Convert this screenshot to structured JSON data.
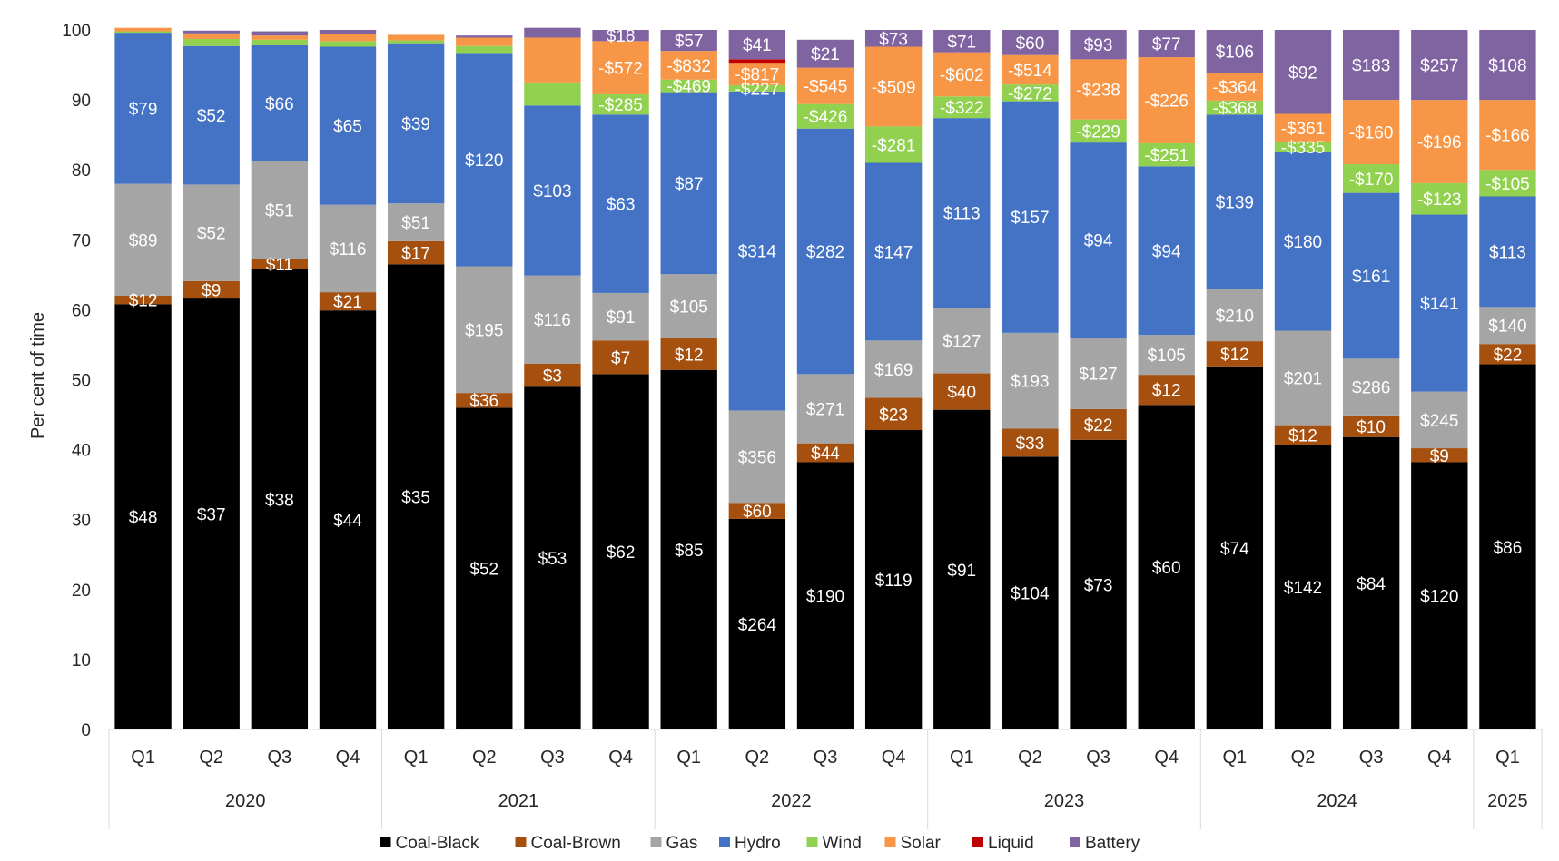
{
  "chart_data": {
    "type": "bar",
    "stacked": true,
    "title": "",
    "xlabel": "",
    "ylabel": "Per cent of time",
    "ylim": [
      0,
      100
    ],
    "yticks": [
      "0",
      "10",
      "20",
      "30",
      "40",
      "50",
      "60",
      "70",
      "80",
      "90",
      "100"
    ],
    "quarters": [
      "Q1",
      "Q2",
      "Q3",
      "Q4",
      "Q1",
      "Q2",
      "Q3",
      "Q4",
      "Q1",
      "Q2",
      "Q3",
      "Q4",
      "Q1",
      "Q2",
      "Q3",
      "Q4",
      "Q1",
      "Q2",
      "Q3",
      "Q4",
      "Q1"
    ],
    "years": [
      {
        "label": "2020",
        "count": 4
      },
      {
        "label": "2021",
        "count": 4
      },
      {
        "label": "2022",
        "count": 4
      },
      {
        "label": "2023",
        "count": 4
      },
      {
        "label": "2024",
        "count": 4
      },
      {
        "label": "2025",
        "count": 1
      }
    ],
    "legend_position": "bottom",
    "series": [
      {
        "name": "Coal-Black",
        "color": "#000000",
        "label_color": "#ffffff",
        "values": [
          60.8,
          61.6,
          65.8,
          59.9,
          66.5,
          46.0,
          49.0,
          50.8,
          51.4,
          30.1,
          38.2,
          42.8,
          45.7,
          39.0,
          41.4,
          46.4,
          51.9,
          40.7,
          41.8,
          38.2,
          52.2
        ],
        "labels": [
          "$48",
          "$37",
          "$38",
          "$44",
          "$35",
          "$52",
          "$53",
          "$62",
          "$85",
          "$264",
          "$190",
          "$119",
          "$91",
          "$104",
          "$73",
          "$60",
          "$74",
          "$142",
          "$84",
          "$120",
          "$86"
        ]
      },
      {
        "name": "Coal-Brown",
        "color": "#a5500f",
        "label_color": "#ffffff",
        "values": [
          1.2,
          2.5,
          1.5,
          2.6,
          3.3,
          2.1,
          3.3,
          4.8,
          4.5,
          2.3,
          2.7,
          4.6,
          5.2,
          4.0,
          4.4,
          4.3,
          3.6,
          2.8,
          3.1,
          2.0,
          2.9
        ],
        "labels": [
          "$12",
          "$9",
          "$11",
          "$21",
          "$17",
          "$36",
          "$3",
          "$7",
          "$12",
          "$60",
          "$44",
          "$23",
          "$40",
          "$33",
          "$22",
          "$12",
          "$12",
          "$12",
          "$10",
          "$9",
          "$22"
        ]
      },
      {
        "name": "Gas",
        "color": "#a5a5a5",
        "label_color": "#ffffff",
        "values": [
          16.0,
          13.8,
          13.9,
          12.5,
          5.4,
          18.1,
          12.6,
          6.8,
          9.2,
          13.2,
          9.9,
          8.2,
          9.4,
          13.7,
          10.2,
          5.7,
          7.4,
          13.5,
          8.1,
          8.1,
          5.3
        ],
        "labels": [
          "$89",
          "$52",
          "$51",
          "$116",
          "$51",
          "$195",
          "$116",
          "$91",
          "$105",
          "$356",
          "$271",
          "$169",
          "$127",
          "$193",
          "$127",
          "$105",
          "$210",
          "$201",
          "$286",
          "$245",
          "$140"
        ]
      },
      {
        "name": "Hydro",
        "color": "#4472c4",
        "label_color": "#ffffff",
        "values": [
          21.6,
          19.8,
          16.6,
          22.6,
          22.9,
          30.5,
          24.3,
          25.5,
          26.0,
          45.6,
          35.1,
          25.4,
          27.1,
          33.1,
          27.9,
          24.1,
          25.0,
          25.6,
          23.7,
          25.3,
          15.8
        ],
        "labels": [
          "$79",
          "$52",
          "$66",
          "$65",
          "$39",
          "$120",
          "$103",
          "$63",
          "$87",
          "$314",
          "$282",
          "$147",
          "$113",
          "$157",
          "$94",
          "$94",
          "$139",
          "$180",
          "$161",
          "$141",
          "$113"
        ]
      },
      {
        "name": "Wind",
        "color": "#92d050",
        "label_color": "#ffffff",
        "values": [
          0.2,
          1.0,
          0.8,
          0.8,
          0.4,
          1.0,
          3.3,
          2.9,
          1.8,
          0.9,
          3.5,
          5.2,
          3.1,
          2.4,
          3.3,
          3.3,
          2.0,
          1.4,
          4.1,
          4.5,
          3.8
        ],
        "labels": [
          "",
          "",
          "",
          "",
          "",
          "",
          "",
          "-$285",
          "-$469",
          "-$227",
          "-$426",
          "-$281",
          "-$322",
          "-$272",
          "-$229",
          "-$251",
          "-$368",
          "-$335",
          "-$170",
          "-$123",
          "-$105"
        ]
      },
      {
        "name": "Solar",
        "color": "#f79646",
        "label_color": "#ffffff",
        "values": [
          0.5,
          0.8,
          0.6,
          1.0,
          0.8,
          1.2,
          6.4,
          7.6,
          4.1,
          3.2,
          5.2,
          11.4,
          6.3,
          4.2,
          8.6,
          12.3,
          4.0,
          4.0,
          9.2,
          11.9,
          10.0
        ],
        "labels": [
          "",
          "",
          "",
          "",
          "",
          "",
          "",
          "-$572",
          "-$832",
          "-$817",
          "-$545",
          "-$509",
          "-$602",
          "-$514",
          "-$238",
          "-$226",
          "-$364",
          "-$361",
          "-$160",
          "-$196",
          "-$166"
        ]
      },
      {
        "name": "Liquid",
        "color": "#c00000",
        "label_color": "#ffffff",
        "values": [
          0,
          0,
          0,
          0,
          0,
          0,
          0,
          0,
          0,
          0.5,
          0,
          0,
          0,
          0,
          0,
          0,
          0,
          0,
          0,
          0,
          0
        ],
        "labels": [
          "",
          "",
          "",
          "",
          "",
          "",
          "",
          "",
          "",
          "",
          "",
          "",
          "",
          "",
          "",
          "",
          "",
          "",
          "",
          "",
          ""
        ]
      },
      {
        "name": "Battery",
        "color": "#8064a2",
        "label_color": "#ffffff",
        "values": [
          0,
          0.4,
          0.6,
          0.6,
          0,
          0.3,
          1.4,
          1.6,
          3.0,
          4.2,
          4.0,
          2.4,
          3.2,
          3.6,
          4.2,
          3.9,
          6.1,
          12.0,
          10.0,
          10.0,
          10.0
        ],
        "labels": [
          "",
          "",
          "",
          "",
          "",
          "",
          "",
          "$18",
          "$57",
          "$41",
          "$21",
          "$73",
          "$71",
          "$60",
          "$93",
          "$77",
          "$106",
          "$92",
          "$183",
          "$257",
          "$108"
        ]
      }
    ]
  }
}
